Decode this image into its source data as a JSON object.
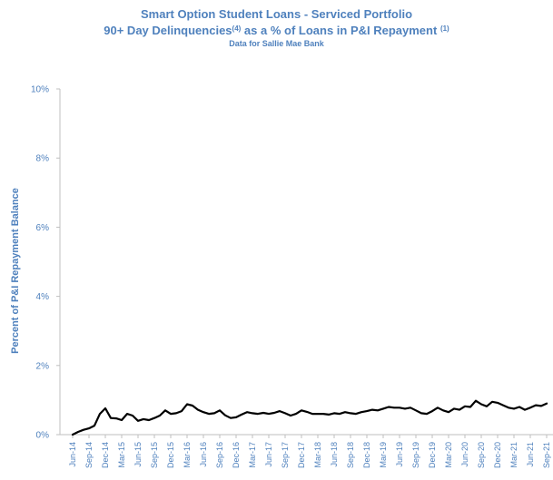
{
  "header": {
    "title": "Smart Option Student Loans - Serviced Portfolio",
    "subtitle_main": "90+ Day Delinquencies",
    "subtitle_sup1": "(4)",
    "subtitle_rest": " as a % of Loans in P&I Repayment ",
    "subtitle_sup2": "(1)",
    "source": "Data for Sallie Mae Bank"
  },
  "colors": {
    "text": "#4f81bd",
    "line": "#000000",
    "axis": "#bfbfbf"
  },
  "chart_data": {
    "type": "line",
    "title": "Smart Option Student Loans - Serviced Portfolio",
    "ylabel": "Percent of P&I Repayment  Balance",
    "xlabel": "",
    "ylim": [
      0,
      10
    ],
    "y_ticks": [
      "0%",
      "2%",
      "4%",
      "6%",
      "8%",
      "10%"
    ],
    "grid": false,
    "x_tick_labels": [
      "Jun-14",
      "Sep-14",
      "Dec-14",
      "Mar-15",
      "Jun-15",
      "Sep-15",
      "Dec-15",
      "Mar-16",
      "Jun-16",
      "Sep-16",
      "Dec-16",
      "Mar-17",
      "Jun-17",
      "Sep-17",
      "Dec-17",
      "Mar-18",
      "Jun-18",
      "Sep-18",
      "Dec-18",
      "Mar-19",
      "Jun-19",
      "Sep-19",
      "Dec-19",
      "Mar-20",
      "Jun-20",
      "Sep-20",
      "Dec-20",
      "Mar-21",
      "Jun-21",
      "Sep-21"
    ],
    "x": [
      "Jun-14",
      "Jul-14",
      "Aug-14",
      "Sep-14",
      "Oct-14",
      "Nov-14",
      "Dec-14",
      "Jan-15",
      "Feb-15",
      "Mar-15",
      "Apr-15",
      "May-15",
      "Jun-15",
      "Jul-15",
      "Aug-15",
      "Sep-15",
      "Oct-15",
      "Nov-15",
      "Dec-15",
      "Jan-16",
      "Feb-16",
      "Mar-16",
      "Apr-16",
      "May-16",
      "Jun-16",
      "Jul-16",
      "Aug-16",
      "Sep-16",
      "Oct-16",
      "Nov-16",
      "Dec-16",
      "Jan-17",
      "Feb-17",
      "Mar-17",
      "Apr-17",
      "May-17",
      "Jun-17",
      "Jul-17",
      "Aug-17",
      "Sep-17",
      "Oct-17",
      "Nov-17",
      "Dec-17",
      "Jan-18",
      "Feb-18",
      "Mar-18",
      "Apr-18",
      "May-18",
      "Jun-18",
      "Jul-18",
      "Aug-18",
      "Sep-18",
      "Oct-18",
      "Nov-18",
      "Dec-18",
      "Jan-19",
      "Feb-19",
      "Mar-19",
      "Apr-19",
      "May-19",
      "Jun-19",
      "Jul-19",
      "Aug-19",
      "Sep-19",
      "Oct-19",
      "Nov-19",
      "Dec-19",
      "Jan-20",
      "Feb-20",
      "Mar-20",
      "Apr-20",
      "May-20",
      "Jun-20",
      "Jul-20",
      "Aug-20",
      "Sep-20",
      "Oct-20",
      "Nov-20",
      "Dec-20",
      "Jan-21",
      "Feb-21",
      "Mar-21",
      "Apr-21",
      "May-21",
      "Jun-21",
      "Jul-21",
      "Aug-21",
      "Sep-21"
    ],
    "series": [
      {
        "values": [
          0.0,
          0.08,
          0.14,
          0.18,
          0.26,
          0.6,
          0.76,
          0.48,
          0.47,
          0.42,
          0.6,
          0.55,
          0.4,
          0.45,
          0.42,
          0.48,
          0.55,
          0.7,
          0.6,
          0.62,
          0.68,
          0.88,
          0.84,
          0.72,
          0.65,
          0.6,
          0.62,
          0.7,
          0.56,
          0.48,
          0.5,
          0.58,
          0.65,
          0.62,
          0.6,
          0.63,
          0.6,
          0.63,
          0.68,
          0.62,
          0.55,
          0.6,
          0.7,
          0.66,
          0.6,
          0.6,
          0.6,
          0.58,
          0.62,
          0.6,
          0.65,
          0.62,
          0.6,
          0.65,
          0.68,
          0.72,
          0.7,
          0.75,
          0.8,
          0.78,
          0.78,
          0.75,
          0.78,
          0.7,
          0.62,
          0.6,
          0.68,
          0.78,
          0.7,
          0.65,
          0.75,
          0.72,
          0.82,
          0.8,
          0.98,
          0.88,
          0.82,
          0.95,
          0.92,
          0.85,
          0.78,
          0.75,
          0.8,
          0.72,
          0.78,
          0.85,
          0.83,
          0.9
        ]
      }
    ]
  }
}
